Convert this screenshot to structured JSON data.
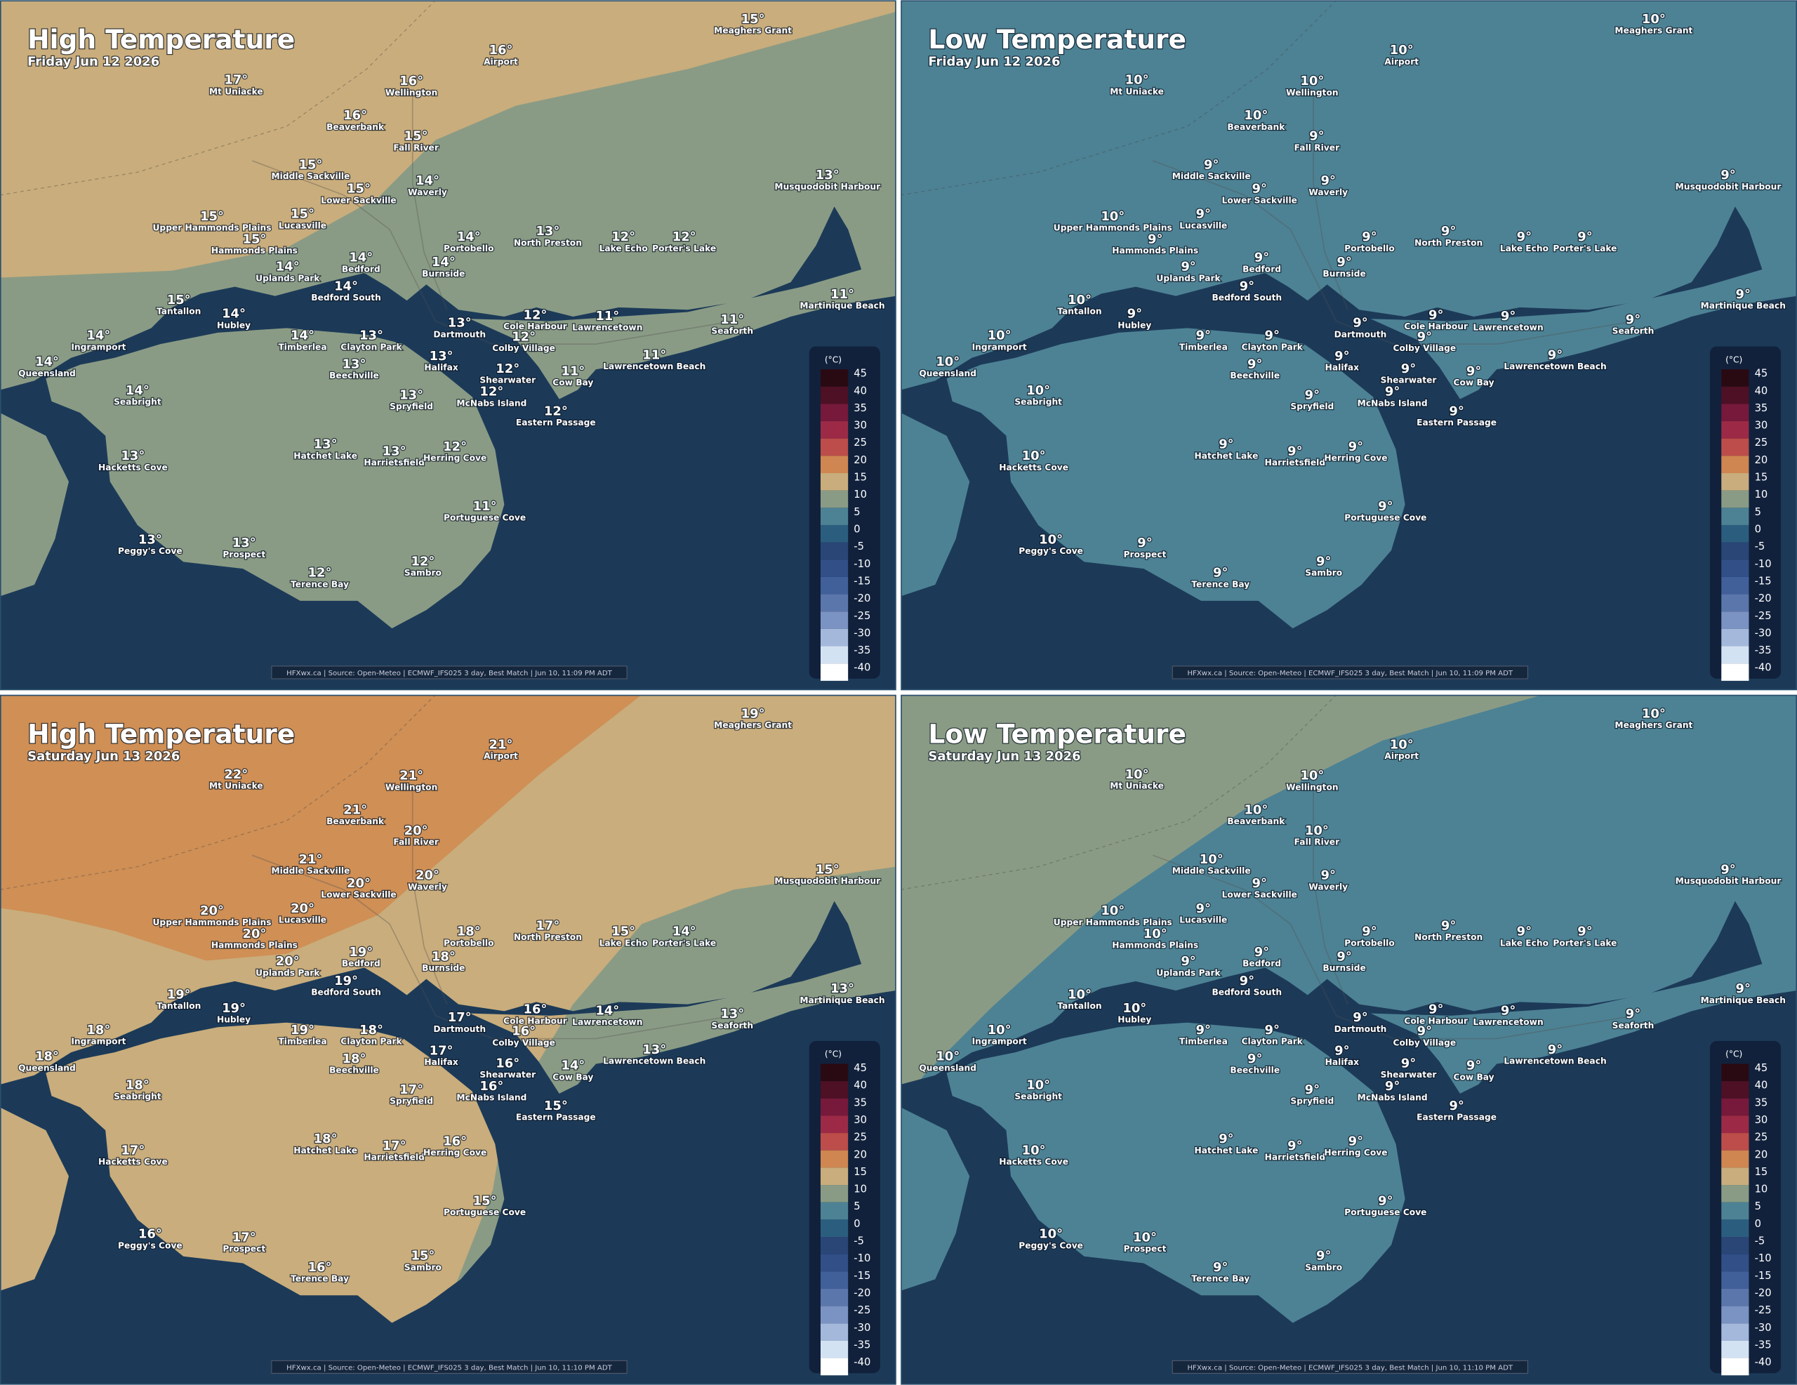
{
  "places": [
    "Meaghers Grant",
    "Airport",
    "Mt Uniacke",
    "Wellington",
    "Beaverbank",
    "Fall River",
    "Middle Sackville",
    "Waverly",
    "Lower Sackville",
    "Musquodobit Harbour",
    "Upper Hammonds Plains",
    "Lucasville",
    "Hammonds Plains",
    "Portobello",
    "North Preston",
    "Lake Echo",
    "Porter's Lake",
    "Uplands Park",
    "Bedford",
    "Burnside",
    "Bedford South",
    "Martinique Beach",
    "Tantallon",
    "Hubley",
    "Cole Harbour",
    "Lawrencetown",
    "Seaforth",
    "Ingramport",
    "Timberlea",
    "Clayton Park",
    "Dartmouth",
    "Colby Village",
    "Queensland",
    "Halifax",
    "Lawrencetown Beach",
    "Beechville",
    "Shearwater",
    "Cow Bay",
    "Seabright",
    "McNabs Island",
    "Spryfield",
    "Eastern Passage",
    "Hatchet Lake",
    "Harrietsfield",
    "Herring Cove",
    "Hacketts Cove",
    "Portuguese Cove",
    "Peggy's Cove",
    "Prospect",
    "Sambro",
    "Terence Bay"
  ],
  "legend": {
    "unit": "(°C)",
    "ticks": [
      45,
      40,
      35,
      30,
      25,
      20,
      15,
      10,
      5,
      0,
      -5,
      -10,
      -15,
      -20,
      -25,
      -30,
      -35,
      -40
    ],
    "colors": [
      "#2a0a12",
      "#4d1024",
      "#76193a",
      "#9c2a46",
      "#bd4d4a",
      "#cf8650",
      "#c9ad7c",
      "#8a9b85",
      "#4d8294",
      "#2b5e7e",
      "#2a4677",
      "#324f87",
      "#41609a",
      "#5a76ab",
      "#7b93c2",
      "#a3b8db",
      "#d3e2f2",
      "#ffffff"
    ]
  },
  "panels": [
    {
      "title": "High Temperature",
      "subtitle": "Friday Jun 12 2026",
      "footer": "HFXwx.ca | Source: Open-Meteo | ECMWF_IFS025 3 day, Best Match | Jun 10, 11:09 PM ADT",
      "temps": [
        "15°",
        "16°",
        "17°",
        "16°",
        "16°",
        "15°",
        "15°",
        "14°",
        "15°",
        "13°",
        "15°",
        "15°",
        "15°",
        "14°",
        "13°",
        "12°",
        "12°",
        "14°",
        "14°",
        "14°",
        "14°",
        "11°",
        "15°",
        "14°",
        "12°",
        "11°",
        "11°",
        "14°",
        "14°",
        "13°",
        "13°",
        "12°",
        "14°",
        "13°",
        "11°",
        "13°",
        "12°",
        "11°",
        "14°",
        "12°",
        "13°",
        "12°",
        "13°",
        "13°",
        "12°",
        "13°",
        "11°",
        "13°",
        "13°",
        "12°",
        "12°"
      ]
    },
    {
      "title": "Low Temperature",
      "subtitle": "Friday Jun 12 2026",
      "footer": "HFXwx.ca | Source: Open-Meteo | ECMWF_IFS025 3 day, Best Match | Jun 10, 11:09 PM ADT",
      "temps": [
        "10°",
        "10°",
        "10°",
        "10°",
        "10°",
        "9°",
        "9°",
        "9°",
        "9°",
        "9°",
        "10°",
        "9°",
        "9°",
        "9°",
        "9°",
        "9°",
        "9°",
        "9°",
        "9°",
        "9°",
        "9°",
        "9°",
        "10°",
        "9°",
        "9°",
        "9°",
        "9°",
        "10°",
        "9°",
        "9°",
        "9°",
        "9°",
        "10°",
        "9°",
        "9°",
        "9°",
        "9°",
        "9°",
        "10°",
        "9°",
        "9°",
        "9°",
        "9°",
        "9°",
        "9°",
        "10°",
        "9°",
        "10°",
        "9°",
        "9°",
        "9°"
      ]
    },
    {
      "title": "High Temperature",
      "subtitle": "Saturday Jun 13 2026",
      "footer": "HFXwx.ca | Source: Open-Meteo | ECMWF_IFS025 3 day, Best Match | Jun 10, 11:10 PM ADT",
      "temps": [
        "19°",
        "21°",
        "22°",
        "21°",
        "21°",
        "20°",
        "21°",
        "20°",
        "20°",
        "15°",
        "20°",
        "20°",
        "20°",
        "18°",
        "17°",
        "15°",
        "14°",
        "20°",
        "19°",
        "18°",
        "19°",
        "13°",
        "19°",
        "19°",
        "16°",
        "14°",
        "13°",
        "18°",
        "19°",
        "18°",
        "17°",
        "16°",
        "18°",
        "17°",
        "13°",
        "18°",
        "16°",
        "14°",
        "18°",
        "16°",
        "17°",
        "15°",
        "18°",
        "17°",
        "16°",
        "17°",
        "15°",
        "16°",
        "17°",
        "15°",
        "16°"
      ]
    },
    {
      "title": "Low Temperature",
      "subtitle": "Saturday Jun 13 2026",
      "footer": "HFXwx.ca | Source: Open-Meteo | ECMWF_IFS025 3 day, Best Match | Jun 10, 11:10 PM ADT",
      "temps": [
        "10°",
        "10°",
        "10°",
        "10°",
        "10°",
        "10°",
        "10°",
        "9°",
        "9°",
        "9°",
        "10°",
        "9°",
        "10°",
        "9°",
        "9°",
        "9°",
        "9°",
        "9°",
        "9°",
        "9°",
        "9°",
        "9°",
        "10°",
        "10°",
        "9°",
        "9°",
        "9°",
        "10°",
        "9°",
        "9°",
        "9°",
        "9°",
        "10°",
        "9°",
        "9°",
        "9°",
        "9°",
        "9°",
        "10°",
        "9°",
        "9°",
        "9°",
        "9°",
        "9°",
        "9°",
        "10°",
        "9°",
        "10°",
        "10°",
        "9°",
        "9°"
      ]
    }
  ]
}
